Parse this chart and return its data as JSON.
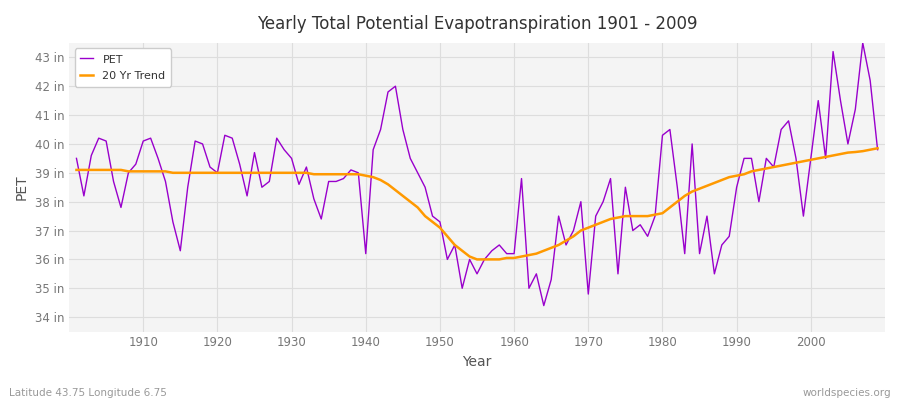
{
  "title": "Yearly Total Potential Evapotranspiration 1901 - 2009",
  "xlabel": "Year",
  "ylabel": "PET",
  "subtitle_left": "Latitude 43.75 Longitude 6.75",
  "subtitle_right": "worldspecies.org",
  "pet_color": "#9900cc",
  "trend_color": "#ff9900",
  "bg_color": "#ffffff",
  "plot_bg_color": "#f4f4f4",
  "grid_color": "#dddddd",
  "ylim": [
    33.5,
    43.5
  ],
  "yticks": [
    34,
    35,
    36,
    37,
    38,
    39,
    40,
    41,
    42,
    43
  ],
  "ytick_labels": [
    "34 in",
    "35 in",
    "36 in",
    "37 in",
    "38 in",
    "39 in",
    "40 in",
    "41 in",
    "42 in",
    "43 in"
  ],
  "xlim": [
    1900,
    2010
  ],
  "xticks": [
    1910,
    1920,
    1930,
    1940,
    1950,
    1960,
    1970,
    1980,
    1990,
    2000
  ],
  "years": [
    1901,
    1902,
    1903,
    1904,
    1905,
    1906,
    1907,
    1908,
    1909,
    1910,
    1911,
    1912,
    1913,
    1914,
    1915,
    1916,
    1917,
    1918,
    1919,
    1920,
    1921,
    1922,
    1923,
    1924,
    1925,
    1926,
    1927,
    1928,
    1929,
    1930,
    1931,
    1932,
    1933,
    1934,
    1935,
    1936,
    1937,
    1938,
    1939,
    1940,
    1941,
    1942,
    1943,
    1944,
    1945,
    1946,
    1947,
    1948,
    1949,
    1950,
    1951,
    1952,
    1953,
    1954,
    1955,
    1956,
    1957,
    1958,
    1959,
    1960,
    1961,
    1962,
    1963,
    1964,
    1965,
    1966,
    1967,
    1968,
    1969,
    1970,
    1971,
    1972,
    1973,
    1974,
    1975,
    1976,
    1977,
    1978,
    1979,
    1980,
    1981,
    1982,
    1983,
    1984,
    1985,
    1986,
    1987,
    1988,
    1989,
    1990,
    1991,
    1992,
    1993,
    1994,
    1995,
    1996,
    1997,
    1998,
    1999,
    2000,
    2001,
    2002,
    2003,
    2004,
    2005,
    2006,
    2007,
    2008,
    2009
  ],
  "pet_values": [
    39.5,
    38.2,
    39.6,
    40.2,
    40.1,
    38.7,
    37.8,
    39.0,
    39.3,
    40.1,
    40.2,
    39.5,
    38.7,
    37.3,
    36.3,
    38.5,
    40.1,
    40.0,
    39.2,
    39.0,
    40.3,
    40.2,
    39.3,
    38.2,
    39.7,
    38.5,
    38.7,
    40.2,
    39.8,
    39.5,
    38.6,
    39.2,
    38.1,
    37.4,
    38.7,
    38.7,
    38.8,
    39.1,
    39.0,
    36.2,
    39.8,
    40.5,
    41.8,
    42.0,
    40.5,
    39.5,
    39.0,
    38.5,
    37.5,
    37.3,
    36.0,
    36.5,
    35.0,
    36.0,
    35.5,
    36.0,
    36.3,
    36.5,
    36.2,
    36.2,
    38.8,
    35.0,
    35.5,
    34.4,
    35.3,
    37.5,
    36.5,
    37.0,
    38.0,
    34.8,
    37.5,
    38.0,
    38.8,
    35.5,
    38.5,
    37.0,
    37.2,
    36.8,
    37.5,
    40.3,
    40.5,
    38.5,
    36.2,
    40.0,
    36.2,
    37.5,
    35.5,
    36.5,
    36.8,
    38.5,
    39.5,
    39.5,
    38.0,
    39.5,
    39.2,
    40.5,
    40.8,
    39.5,
    37.5,
    39.5,
    41.5,
    39.5,
    43.2,
    41.5,
    40.0,
    41.2,
    43.5,
    42.2,
    39.8
  ],
  "trend_values": [
    39.1,
    39.1,
    39.1,
    39.1,
    39.1,
    39.1,
    39.1,
    39.05,
    39.05,
    39.05,
    39.05,
    39.05,
    39.05,
    39.0,
    39.0,
    39.0,
    39.0,
    39.0,
    39.0,
    39.0,
    39.0,
    39.0,
    39.0,
    39.0,
    39.0,
    39.0,
    39.0,
    39.0,
    39.0,
    39.0,
    39.0,
    39.0,
    38.95,
    38.95,
    38.95,
    38.95,
    38.95,
    38.95,
    38.95,
    38.9,
    38.85,
    38.75,
    38.6,
    38.4,
    38.2,
    38.0,
    37.8,
    37.5,
    37.3,
    37.1,
    36.8,
    36.5,
    36.3,
    36.1,
    36.0,
    36.0,
    36.0,
    36.0,
    36.05,
    36.05,
    36.1,
    36.15,
    36.2,
    36.3,
    36.4,
    36.5,
    36.65,
    36.8,
    37.0,
    37.1,
    37.2,
    37.3,
    37.4,
    37.45,
    37.5,
    37.5,
    37.5,
    37.5,
    37.55,
    37.6,
    37.8,
    38.0,
    38.2,
    38.35,
    38.45,
    38.55,
    38.65,
    38.75,
    38.85,
    38.9,
    38.95,
    39.05,
    39.1,
    39.15,
    39.2,
    39.25,
    39.3,
    39.35,
    39.4,
    39.45,
    39.5,
    39.55,
    39.6,
    39.65,
    39.7,
    39.72,
    39.75,
    39.8,
    39.85
  ]
}
